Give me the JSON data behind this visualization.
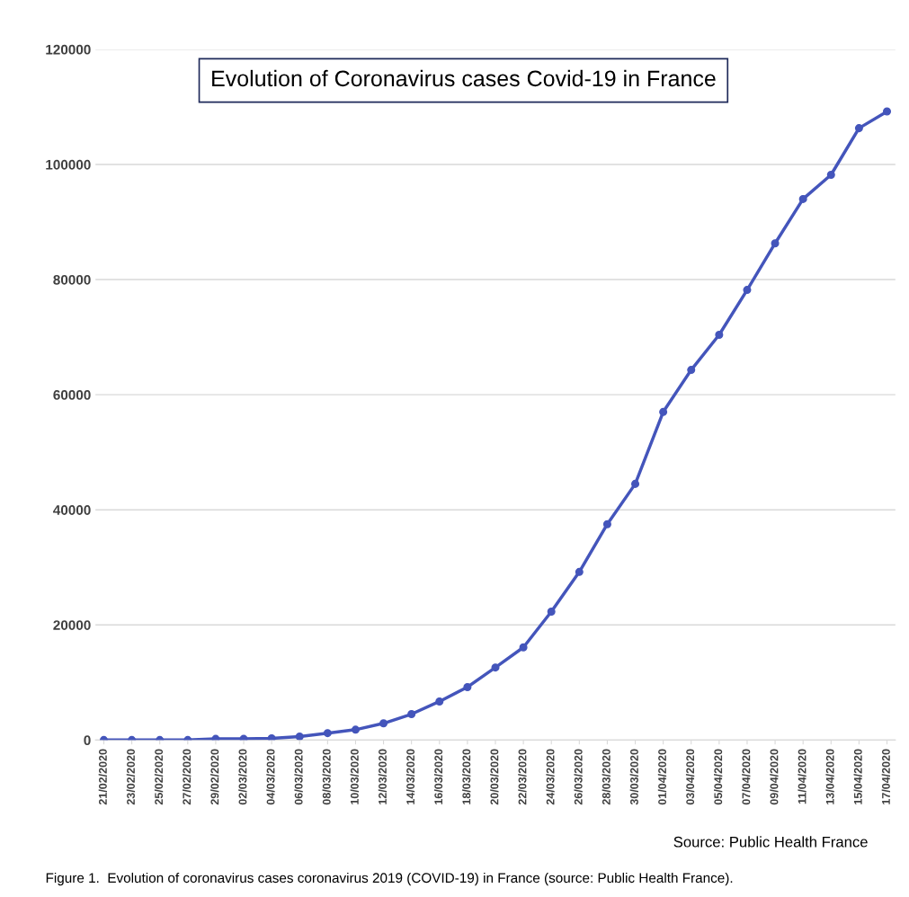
{
  "chart_data": {
    "type": "line",
    "title": "Evolution of Coronavirus cases Covid-19 in France",
    "categories": [
      "21/02/2020",
      "23/02/2020",
      "25/02/2020",
      "27/02/2020",
      "29/02/2020",
      "02/03/2020",
      "04/03/2020",
      "06/03/2020",
      "08/03/2020",
      "10/03/2020",
      "12/03/2020",
      "14/03/2020",
      "16/03/2020",
      "18/03/2020",
      "20/03/2020",
      "22/03/2020",
      "24/03/2020",
      "26/03/2020",
      "28/03/2020",
      "30/03/2020",
      "01/04/2020",
      "03/04/2020",
      "05/04/2020",
      "07/04/2020",
      "09/04/2020",
      "11/04/2020",
      "13/04/2020",
      "15/04/2020",
      "17/04/2020"
    ],
    "series": [
      {
        "color": "#4455bb",
        "values": [
          0,
          0,
          0,
          0,
          200,
          200,
          300,
          600,
          1200,
          1800,
          2900,
          4500,
          6700,
          9200,
          12600,
          16100,
          22300,
          29200,
          37500,
          44500,
          57000,
          64300,
          70400,
          78200,
          86300,
          94000,
          98200,
          106300,
          109200
        ]
      }
    ],
    "ylim": [
      0,
      120000
    ],
    "yticks": [
      0,
      20000,
      40000,
      60000,
      80000,
      100000,
      120000
    ],
    "grid": "y",
    "marker": "circle",
    "line_style": "solid",
    "legend": false,
    "annotations": [
      "Source: Public Health France",
      "Figure 1.  Evolution of coronavirus cases coronavirus 2019 (COVID-19) in France (source: Public Health France)."
    ]
  }
}
